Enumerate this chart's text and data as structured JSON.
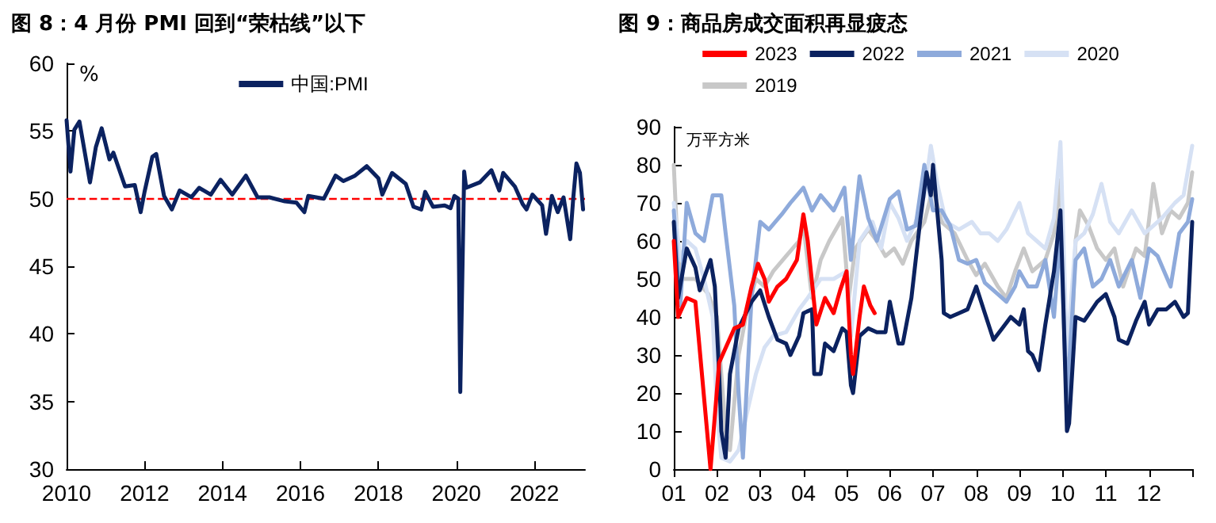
{
  "chart_data": [
    {
      "type": "line",
      "title": "图 8：4 月份 PMI 回到“荣枯线”以下",
      "ylabel": "%",
      "legend": "top",
      "marker": "none",
      "line_style": "solid",
      "xlim": [
        2010,
        2023.3
      ],
      "xticks": [
        2010,
        2012,
        2014,
        2016,
        2018,
        2020,
        2022
      ],
      "ylim": [
        30,
        60
      ],
      "yticks": [
        30,
        35,
        40,
        45,
        50,
        55,
        60
      ],
      "ref_lines": [
        {
          "axis": "y",
          "value": 50,
          "color": "#ff0000",
          "line_style": "dashed"
        }
      ],
      "series": [
        {
          "name": "中国:PMI",
          "color": "#0b2260",
          "x": [
            2010,
            2010.1,
            2010.2,
            2010.33,
            2010.6,
            2010.75,
            2010.9,
            2011.1,
            2011.2,
            2011.5,
            2011.75,
            2011.9,
            2012.0,
            2012.2,
            2012.3,
            2012.5,
            2012.7,
            2012.9,
            2013.2,
            2013.4,
            2013.7,
            2013.95,
            2014.25,
            2014.6,
            2014.9,
            2015.2,
            2015.6,
            2015.9,
            2016.1,
            2016.2,
            2016.6,
            2016.9,
            2017.1,
            2017.4,
            2017.7,
            2018.0,
            2018.1,
            2018.35,
            2018.7,
            2018.9,
            2019.1,
            2019.2,
            2019.4,
            2019.7,
            2019.85,
            2019.95,
            2020.05,
            2020.1,
            2020.2,
            2020.25,
            2020.6,
            2020.9,
            2021.1,
            2021.2,
            2021.5,
            2021.7,
            2021.8,
            2021.95,
            2022.2,
            2022.3,
            2022.45,
            2022.6,
            2022.75,
            2022.92,
            2023.0,
            2023.08,
            2023.17,
            2023.25
          ],
          "values": [
            55.8,
            52.0,
            55.1,
            55.7,
            51.2,
            53.8,
            55.2,
            52.9,
            53.4,
            50.9,
            51.0,
            49.0,
            50.5,
            53.1,
            53.3,
            50.2,
            49.2,
            50.6,
            50.1,
            50.8,
            50.3,
            51.4,
            50.3,
            51.7,
            50.1,
            50.1,
            49.8,
            49.7,
            49.0,
            50.2,
            50.0,
            51.7,
            51.3,
            51.7,
            52.4,
            51.5,
            50.3,
            51.9,
            51.1,
            49.4,
            49.2,
            50.5,
            49.4,
            49.5,
            49.3,
            50.2,
            50.0,
            35.7,
            52.0,
            50.8,
            51.2,
            52.1,
            50.6,
            51.9,
            50.9,
            49.6,
            49.2,
            50.3,
            49.5,
            47.4,
            50.2,
            49.0,
            50.1,
            47.0,
            50.1,
            52.6,
            51.9,
            49.2
          ]
        }
      ]
    },
    {
      "type": "line",
      "title": "图 9：商品房成交面积再显疲态",
      "ylabel": "万平方米",
      "legend": "top",
      "marker": "none",
      "line_style": "solid",
      "xlim": [
        1,
        13
      ],
      "xticks": [
        {
          "value": 1,
          "label": "01"
        },
        {
          "value": 2,
          "label": "02"
        },
        {
          "value": 3,
          "label": "03"
        },
        {
          "value": 4,
          "label": "04"
        },
        {
          "value": 5,
          "label": "05"
        },
        {
          "value": 6,
          "label": "06"
        },
        {
          "value": 7,
          "label": "07"
        },
        {
          "value": 8,
          "label": "08"
        },
        {
          "value": 9,
          "label": "09"
        },
        {
          "value": 10,
          "label": "10"
        },
        {
          "value": 11,
          "label": "11"
        },
        {
          "value": 12,
          "label": "12"
        },
        {
          "value": 13,
          "label": null
        }
      ],
      "ylim": [
        0,
        90
      ],
      "yticks": [
        0,
        10,
        20,
        30,
        40,
        50,
        60,
        70,
        80,
        90
      ],
      "series": [
        {
          "name": "2023",
          "color": "#ff0000",
          "x": [
            1.0,
            1.1,
            1.3,
            1.5,
            1.85,
            2.05,
            2.4,
            2.6,
            2.8,
            2.95,
            3.1,
            3.2,
            3.4,
            3.6,
            3.85,
            4.0,
            4.1,
            4.3,
            4.5,
            4.7,
            4.85,
            5.0,
            5.1,
            5.15,
            5.3,
            5.4,
            5.55,
            5.65
          ],
          "values": [
            60,
            40,
            45,
            44,
            0,
            28,
            37,
            38,
            48,
            54,
            50,
            44,
            48,
            50,
            55,
            67,
            60,
            38,
            45,
            41,
            47,
            52,
            30,
            25,
            40,
            48,
            43,
            41
          ]
        },
        {
          "name": "2022",
          "color": "#0b2260",
          "x": [
            1.0,
            1.1,
            1.3,
            1.5,
            1.6,
            1.85,
            1.95,
            2.05,
            2.1,
            2.2,
            2.3,
            2.5,
            2.8,
            3.0,
            3.2,
            3.4,
            3.6,
            3.7,
            3.9,
            4.0,
            4.2,
            4.25,
            4.4,
            4.5,
            4.7,
            4.9,
            5.0,
            5.1,
            5.15,
            5.3,
            5.5,
            5.7,
            5.9,
            6.0,
            6.2,
            6.3,
            6.5,
            6.7,
            6.85,
            6.95,
            7.0,
            7.2,
            7.25,
            7.4,
            7.6,
            7.8,
            8.0,
            8.2,
            8.4,
            8.6,
            8.8,
            9.0,
            9.1,
            9.2,
            9.3,
            9.45,
            9.6,
            9.8,
            9.95,
            10.0,
            10.1,
            10.15,
            10.3,
            10.5,
            10.8,
            11.0,
            11.2,
            11.3,
            11.5,
            11.7,
            11.9,
            12.0,
            12.2,
            12.4,
            12.6,
            12.8,
            12.9,
            13.0
          ],
          "values": [
            65,
            45,
            58,
            53,
            47,
            55,
            48,
            25,
            10,
            3,
            25,
            37,
            44,
            47,
            40,
            34,
            33,
            30,
            35,
            41,
            42,
            25,
            25,
            33,
            31,
            37,
            36,
            22,
            20,
            35,
            37,
            36,
            36,
            44,
            33,
            33,
            45,
            65,
            78,
            72,
            80,
            55,
            41,
            40,
            41,
            42,
            48,
            41,
            34,
            37,
            40,
            38,
            42,
            31,
            30,
            26,
            38,
            52,
            68,
            50,
            10,
            12,
            40,
            39,
            44,
            46,
            40,
            34,
            33,
            39,
            44,
            38,
            42,
            42,
            44,
            40,
            41,
            65
          ]
        },
        {
          "name": "2021",
          "color": "#8eaadb",
          "x": [
            1.0,
            1.15,
            1.3,
            1.5,
            1.7,
            1.9,
            2.1,
            2.2,
            2.4,
            2.5,
            2.6,
            2.8,
            3.0,
            3.2,
            3.5,
            3.7,
            4.0,
            4.2,
            4.4,
            4.7,
            4.95,
            5.1,
            5.3,
            5.5,
            5.7,
            6.0,
            6.2,
            6.4,
            6.6,
            6.8,
            7.0,
            7.2,
            7.4,
            7.6,
            7.8,
            8.0,
            8.2,
            8.5,
            8.7,
            8.9,
            9.0,
            9.2,
            9.4,
            9.6,
            9.8,
            9.95,
            10.1,
            10.3,
            10.5,
            10.7,
            10.9,
            11.1,
            11.3,
            11.6,
            11.8,
            12.0,
            12.2,
            12.5,
            12.7,
            12.9,
            13.0
          ],
          "values": [
            68,
            43,
            70,
            62,
            60,
            72,
            72,
            62,
            43,
            20,
            3,
            45,
            65,
            63,
            67,
            70,
            74,
            68,
            72,
            68,
            74,
            55,
            77,
            66,
            60,
            71,
            73,
            63,
            64,
            80,
            68,
            68,
            64,
            55,
            54,
            55,
            49,
            46,
            44,
            48,
            52,
            48,
            48,
            55,
            40,
            62,
            18,
            55,
            58,
            48,
            50,
            55,
            48,
            55,
            45,
            58,
            56,
            48,
            62,
            65,
            71
          ]
        },
        {
          "name": "2020",
          "color": "#d6e1f4",
          "x": [
            1.0,
            1.15,
            1.3,
            1.5,
            1.7,
            1.9,
            2.0,
            2.1,
            2.3,
            2.5,
            2.7,
            2.9,
            3.1,
            3.3,
            3.6,
            3.9,
            4.1,
            4.4,
            4.7,
            5.0,
            5.1,
            5.3,
            5.6,
            5.8,
            6.0,
            6.2,
            6.4,
            6.6,
            6.8,
            6.95,
            7.1,
            7.3,
            7.6,
            7.9,
            8.1,
            8.3,
            8.5,
            8.7,
            9.0,
            9.2,
            9.4,
            9.6,
            9.8,
            9.95,
            10.1,
            10.3,
            10.5,
            10.7,
            10.9,
            11.1,
            11.3,
            11.6,
            11.9,
            12.1,
            12.3,
            12.6,
            12.8,
            13.0
          ],
          "values": [
            70,
            55,
            60,
            58,
            50,
            40,
            15,
            3,
            2,
            5,
            15,
            25,
            32,
            35,
            36,
            42,
            45,
            50,
            50,
            52,
            35,
            60,
            65,
            58,
            70,
            66,
            60,
            65,
            72,
            85,
            75,
            65,
            63,
            65,
            62,
            62,
            60,
            63,
            70,
            62,
            60,
            58,
            66,
            86,
            30,
            60,
            62,
            67,
            75,
            65,
            62,
            68,
            62,
            64,
            66,
            70,
            72,
            85
          ]
        },
        {
          "name": "2019",
          "color": "#c8c8c8",
          "x": [
            1.0,
            1.1,
            1.2,
            1.5,
            1.8,
            2.0,
            2.1,
            2.2,
            2.3,
            2.5,
            2.7,
            2.9,
            3.1,
            3.3,
            3.6,
            3.9,
            4.0,
            4.2,
            4.4,
            4.6,
            4.9,
            5.05,
            5.2,
            5.5,
            5.7,
            5.9,
            6.1,
            6.3,
            6.5,
            6.8,
            7.0,
            7.2,
            7.5,
            7.8,
            8.0,
            8.2,
            8.5,
            8.7,
            8.9,
            9.1,
            9.3,
            9.6,
            9.8,
            9.95,
            10.05,
            10.15,
            10.3,
            10.4,
            10.6,
            10.8,
            11.0,
            11.2,
            11.4,
            11.7,
            11.9,
            12.1,
            12.3,
            12.5,
            12.7,
            12.9,
            13.0
          ],
          "values": [
            80,
            55,
            50,
            50,
            46,
            40,
            25,
            10,
            5,
            30,
            42,
            50,
            48,
            52,
            56,
            60,
            64,
            45,
            55,
            60,
            66,
            45,
            58,
            63,
            60,
            56,
            58,
            54,
            60,
            65,
            74,
            65,
            62,
            55,
            51,
            54,
            48,
            45,
            52,
            58,
            52,
            55,
            62,
            76,
            40,
            15,
            60,
            68,
            64,
            58,
            55,
            58,
            48,
            58,
            56,
            75,
            62,
            68,
            66,
            70,
            78
          ]
        }
      ]
    }
  ]
}
